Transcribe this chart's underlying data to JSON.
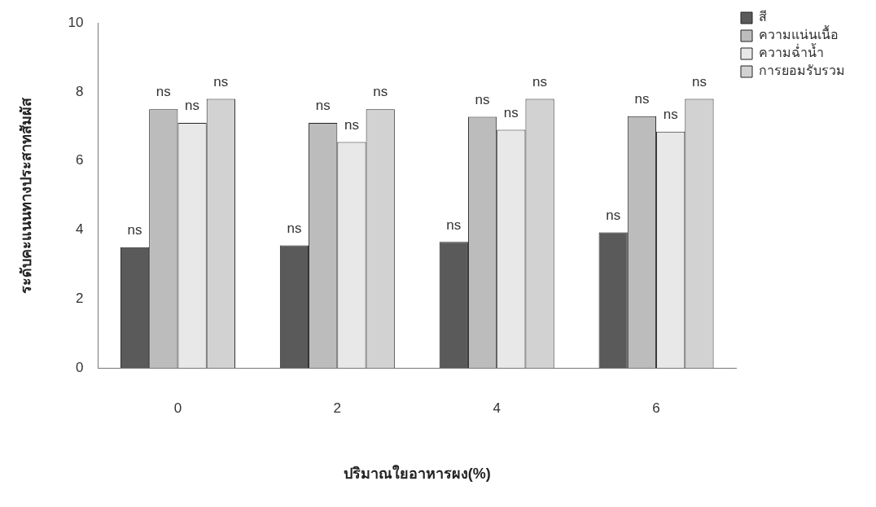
{
  "chart_data": {
    "type": "bar",
    "xlabel": "ปริมาณใยอาหารผง(%)",
    "ylabel": "ระดับคะแนนทางประสาทสัมผัส",
    "categories": [
      "0",
      "2",
      "4",
      "6"
    ],
    "series": [
      {
        "name": "สี",
        "color": "#5a5a5a",
        "values": [
          3.5,
          3.55,
          3.65,
          3.93
        ],
        "value_labels": [
          "ns",
          "ns",
          "ns",
          "ns"
        ]
      },
      {
        "name": "ความแน่นเนื้อ",
        "color": "#bcbcbc",
        "values": [
          7.5,
          7.1,
          7.28,
          7.3
        ],
        "value_labels": [
          "ns",
          "ns",
          "ns",
          "ns"
        ]
      },
      {
        "name": "ความฉ่ำน้ำ",
        "color": "#e8e8e8",
        "values": [
          7.1,
          6.55,
          6.9,
          6.85
        ],
        "value_labels": [
          "ns",
          "ns",
          "ns",
          "ns"
        ]
      },
      {
        "name": "การยอมรับรวม",
        "color": "#d2d2d2",
        "values": [
          7.8,
          7.5,
          7.8,
          7.8
        ],
        "value_labels": [
          "ns",
          "ns",
          "ns",
          "ns"
        ]
      }
    ],
    "ylim": [
      0,
      10
    ],
    "yticks": [
      0,
      2,
      4,
      6,
      8,
      10
    ],
    "grid": false,
    "legend": "top right"
  }
}
